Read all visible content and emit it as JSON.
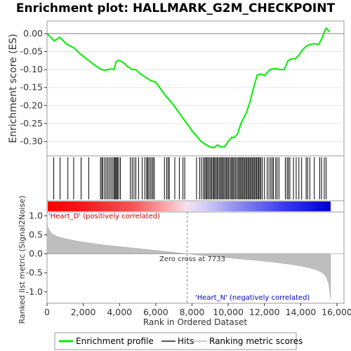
{
  "title": "Enrichment plot: HALLMARK_G2M_CHECKPOINT",
  "colors": {
    "profile": "#00ee00",
    "hits": "#000000",
    "metric": "#bebebe",
    "positive": "#ff0000",
    "negative": "#0000ff",
    "positive_label": "#cc0000",
    "negative_label": "#0000cc"
  },
  "legend": {
    "profile": "Enrichment profile",
    "hits": "Hits",
    "metric": "Ranking metric scores"
  },
  "annotations": {
    "positive": "'Heart_D' (positively correlated)",
    "negative": "'Heart_N' (negatively correlated)",
    "zero_cross": "Zero cross at 7733"
  },
  "chart_data": [
    {
      "type": "line",
      "panel": "enrichment",
      "ylabel": "Enrichment score (ES)",
      "xlim": [
        0,
        16000
      ],
      "ylim": [
        -0.34,
        0.035
      ],
      "yticks": [
        0.0,
        -0.05,
        -0.1,
        -0.15,
        -0.2,
        -0.25,
        -0.3
      ],
      "ytick_labels": [
        "0.00",
        "-0.05",
        "-0.10",
        "-0.15",
        "-0.20",
        "-0.25",
        "-0.30"
      ],
      "series": [
        {
          "name": "Enrichment profile",
          "x": [
            0,
            400,
            700,
            1100,
            1500,
            1800,
            2300,
            2700,
            3000,
            3200,
            3500,
            3700,
            3800,
            3900,
            4000,
            4200,
            4400,
            4700,
            4900,
            5100,
            5400,
            5700,
            6000,
            6500,
            7000,
            7500,
            8000,
            8500,
            8800,
            9000,
            9200,
            9400,
            9600,
            9800,
            10000,
            10200,
            10300,
            10500,
            10700,
            10800,
            11000,
            11200,
            11400,
            11600,
            11800,
            12000,
            12300,
            12600,
            12900,
            13100,
            13300,
            13500,
            13700,
            13900,
            14100,
            14300,
            14500,
            14800,
            15000,
            15200,
            15300,
            15400,
            15500,
            15600
          ],
          "y": [
            0.0,
            -0.02,
            -0.01,
            -0.03,
            -0.04,
            -0.055,
            -0.075,
            -0.09,
            -0.1,
            -0.102,
            -0.098,
            -0.1,
            -0.08,
            -0.075,
            -0.075,
            -0.08,
            -0.09,
            -0.1,
            -0.1,
            -0.11,
            -0.12,
            -0.13,
            -0.135,
            -0.17,
            -0.2,
            -0.235,
            -0.27,
            -0.3,
            -0.31,
            -0.315,
            -0.318,
            -0.31,
            -0.315,
            -0.315,
            -0.3,
            -0.288,
            -0.29,
            -0.28,
            -0.25,
            -0.24,
            -0.22,
            -0.19,
            -0.15,
            -0.115,
            -0.112,
            -0.117,
            -0.1,
            -0.097,
            -0.1,
            -0.1,
            -0.075,
            -0.07,
            -0.07,
            -0.06,
            -0.045,
            -0.035,
            -0.03,
            -0.028,
            -0.03,
            -0.01,
            0.005,
            0.015,
            0.01,
            0.005
          ]
        }
      ]
    },
    {
      "type": "line",
      "panel": "hits",
      "name": "Hits",
      "x": [
        370,
        720,
        1150,
        1470,
        1880,
        2300,
        2950,
        3020,
        3080,
        3180,
        3260,
        3350,
        3430,
        3520,
        3600,
        3680,
        3740,
        3790,
        3840,
        3890,
        3960,
        4050,
        4600,
        4700,
        4800,
        4900,
        5050,
        5250,
        5400,
        5500,
        5550,
        5620,
        5700,
        5780,
        5850,
        5920,
        6480,
        6600,
        6680,
        6750,
        7050,
        7300,
        7500,
        7600,
        8250,
        8420,
        8520,
        8620,
        8700,
        8760,
        8820,
        8880,
        8950,
        9020,
        9080,
        9150,
        9210,
        9260,
        9330,
        9390,
        9450,
        9520,
        9580,
        9640,
        9700,
        9760,
        9830,
        9890,
        9950,
        10010,
        10080,
        10150,
        10210,
        10270,
        10330,
        10400,
        10470,
        10540,
        10600,
        10660,
        10720,
        10780,
        10840,
        10900,
        10960,
        11020,
        11080,
        11140,
        11200,
        11260,
        11320,
        11380,
        11440,
        11500,
        11560,
        11620,
        11680,
        11740,
        11800,
        11880,
        12000,
        12150,
        12250,
        12350,
        12430,
        12500,
        12620,
        12700,
        12800,
        13150,
        13250,
        13320,
        13400,
        13600,
        13750,
        13900,
        14050,
        14300,
        14380,
        14500,
        14750,
        15050,
        15150,
        15300,
        15400
      ]
    },
    {
      "type": "heatmap",
      "panel": "rank-bar",
      "xlim": [
        0,
        15650
      ],
      "low_label_side": "positive",
      "high_label_side": "negative"
    },
    {
      "type": "area",
      "panel": "metric",
      "xlabel": "Rank in Ordered Dataset",
      "ylabel": "Ranked list metric (Signal2Noise)",
      "xlim": [
        0,
        16000
      ],
      "ylim": [
        -1.3,
        1.1
      ],
      "xticks": [
        0,
        2000,
        4000,
        6000,
        8000,
        10000,
        12000,
        14000,
        16000
      ],
      "xtick_labels": [
        "0",
        "2,000",
        "4,000",
        "6,000",
        "8,000",
        "10,000",
        "12,000",
        "14,000",
        "16,000"
      ],
      "yticks": [
        1.0,
        0.5,
        0.0,
        -0.5,
        -1.0
      ],
      "ytick_labels": [
        "1.0",
        "0.5",
        "0.0",
        "-0.5",
        "-1.0"
      ],
      "zero_cross": 7733,
      "series": [
        {
          "name": "Ranking metric scores",
          "x": [
            0,
            50,
            150,
            300,
            600,
            1000,
            1500,
            2000,
            3000,
            4000,
            5000,
            6000,
            7000,
            7733,
            8500,
            9500,
            10500,
            11500,
            12500,
            13500,
            14000,
            14500,
            14900,
            15200,
            15400,
            15550,
            15600,
            15650
          ],
          "y": [
            0.8,
            0.7,
            0.6,
            0.52,
            0.45,
            0.4,
            0.35,
            0.31,
            0.24,
            0.19,
            0.14,
            0.09,
            0.04,
            0.0,
            -0.04,
            -0.08,
            -0.13,
            -0.17,
            -0.22,
            -0.28,
            -0.32,
            -0.37,
            -0.43,
            -0.5,
            -0.6,
            -0.8,
            -1.0,
            -1.2
          ]
        }
      ]
    }
  ]
}
